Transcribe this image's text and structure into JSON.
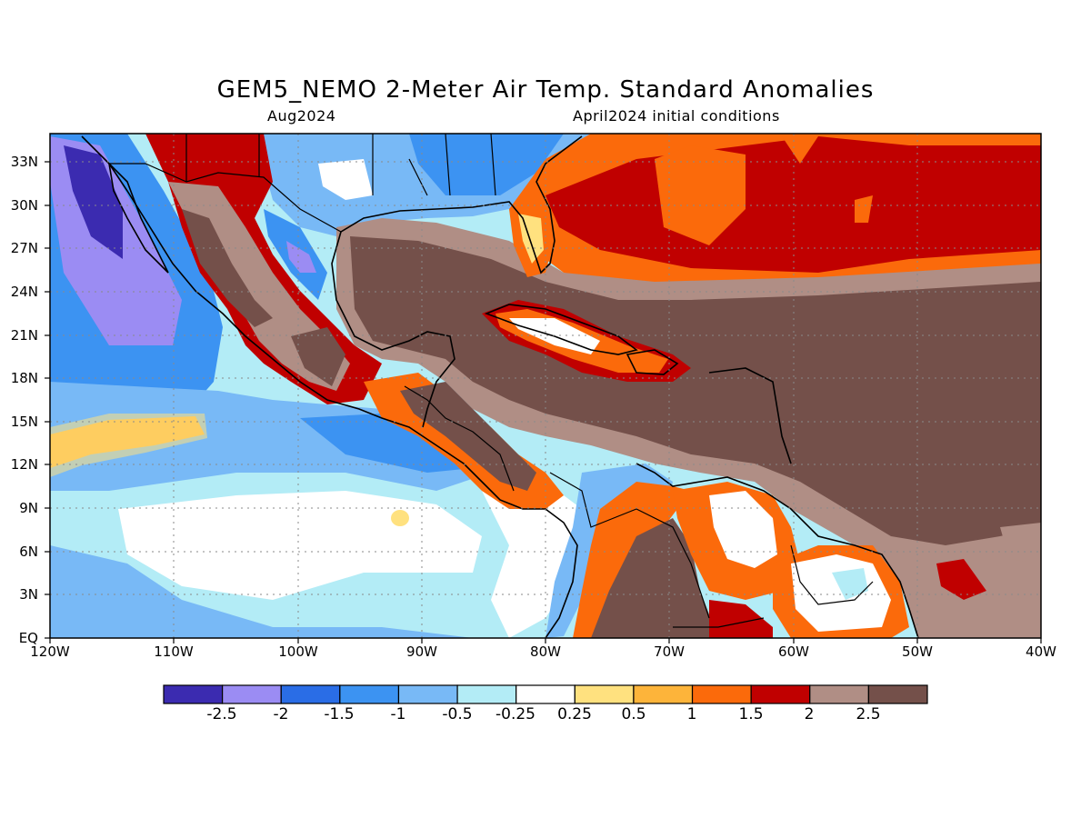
{
  "title": "GEM5_NEMO 2-Meter Air Temp. Standard Anomalies",
  "subtitle_left": "Aug2024",
  "subtitle_right": "April2024 initial conditions",
  "lon_labels": [
    "120W",
    "110W",
    "100W",
    "90W",
    "80W",
    "70W",
    "60W",
    "50W",
    "40W"
  ],
  "lat_labels": [
    "33N",
    "30N",
    "27N",
    "24N",
    "21N",
    "18N",
    "15N",
    "12N",
    "9N",
    "6N",
    "3N",
    "EQ"
  ],
  "colorbar": {
    "colors": [
      "#3b2bb0",
      "#9b8cf3",
      "#2a6de6",
      "#3c93f2",
      "#78b9f6",
      "#b3ecf6",
      "#ffffff",
      "#ffe17f",
      "#fdb43a",
      "#fb6a0b",
      "#c00000",
      "#b08e85",
      "#74504a"
    ],
    "labels": [
      "-2.5",
      "-2",
      "-1.5",
      "-1",
      "-0.5",
      "-0.25",
      "0.25",
      "0.5",
      "1",
      "1.5",
      "2",
      "2.5"
    ]
  },
  "map": {
    "lon_range": [
      -120,
      -40
    ],
    "lat_range": [
      0,
      35
    ],
    "grid": true,
    "grid_style": "dotted"
  }
}
